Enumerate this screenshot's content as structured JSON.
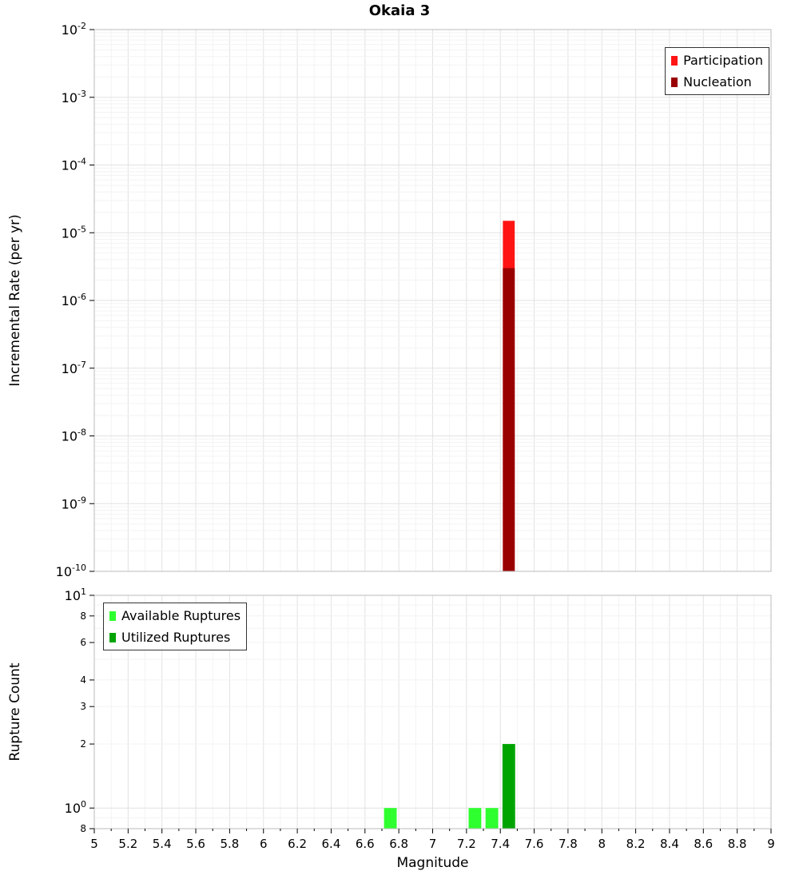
{
  "chart_data": [
    {
      "type": "bar",
      "title": "Okaia 3",
      "ylabel": "Incremental Rate (per yr)",
      "yscale": "log",
      "ylim": [
        1e-10,
        0.01
      ],
      "xlim": [
        5,
        9
      ],
      "bar_width": 0.07,
      "grid": true,
      "legend_position": "top-right",
      "yticks": [
        {
          "v": 0.01,
          "label": "10^-2"
        },
        {
          "v": 0.001,
          "label": "10^-3"
        },
        {
          "v": 0.0001,
          "label": "10^-4"
        },
        {
          "v": 1e-05,
          "label": "10^-5"
        },
        {
          "v": 1e-06,
          "label": "10^-6"
        },
        {
          "v": 1e-07,
          "label": "10^-7"
        },
        {
          "v": 1e-08,
          "label": "10^-8"
        },
        {
          "v": 1e-09,
          "label": "10^-9"
        },
        {
          "v": 1e-10,
          "label": "10^-10"
        }
      ],
      "series": [
        {
          "name": "Participation",
          "color": "#ff1414",
          "bars": [
            {
              "x": 7.45,
              "y": 1.5e-05
            }
          ]
        },
        {
          "name": "Nucleation",
          "color": "#990000",
          "bars": [
            {
              "x": 7.45,
              "y": 3e-06
            }
          ]
        }
      ]
    },
    {
      "type": "bar",
      "ylabel": "Rupture Count",
      "xlabel": "Magnitude",
      "yscale": "log",
      "ylim": [
        0.8,
        10
      ],
      "xlim": [
        5,
        9
      ],
      "bar_width": 0.075,
      "grid": true,
      "legend_position": "top-left",
      "yticks": [
        {
          "v": 10,
          "label": "10^1"
        },
        {
          "v": 8,
          "label": "8"
        },
        {
          "v": 6,
          "label": "6"
        },
        {
          "v": 4,
          "label": "4"
        },
        {
          "v": 3,
          "label": "3"
        },
        {
          "v": 2,
          "label": "2"
        },
        {
          "v": 1,
          "label": "10^0"
        },
        {
          "v": 0.8,
          "label": "8"
        }
      ],
      "xticks": [
        "5",
        "5.2",
        "5.4",
        "5.6",
        "5.8",
        "6",
        "6.2",
        "6.4",
        "6.6",
        "6.8",
        "7",
        "7.2",
        "7.4",
        "7.6",
        "7.8",
        "8",
        "8.2",
        "8.4",
        "8.6",
        "8.8",
        "9"
      ],
      "series": [
        {
          "name": "Available Ruptures",
          "color": "#2eff2e",
          "bars": [
            {
              "x": 6.75,
              "y": 1
            },
            {
              "x": 7.25,
              "y": 1
            },
            {
              "x": 7.35,
              "y": 1
            }
          ]
        },
        {
          "name": "Utilized Ruptures",
          "color": "#00a400",
          "bars": [
            {
              "x": 7.45,
              "y": 2
            }
          ]
        }
      ]
    }
  ]
}
